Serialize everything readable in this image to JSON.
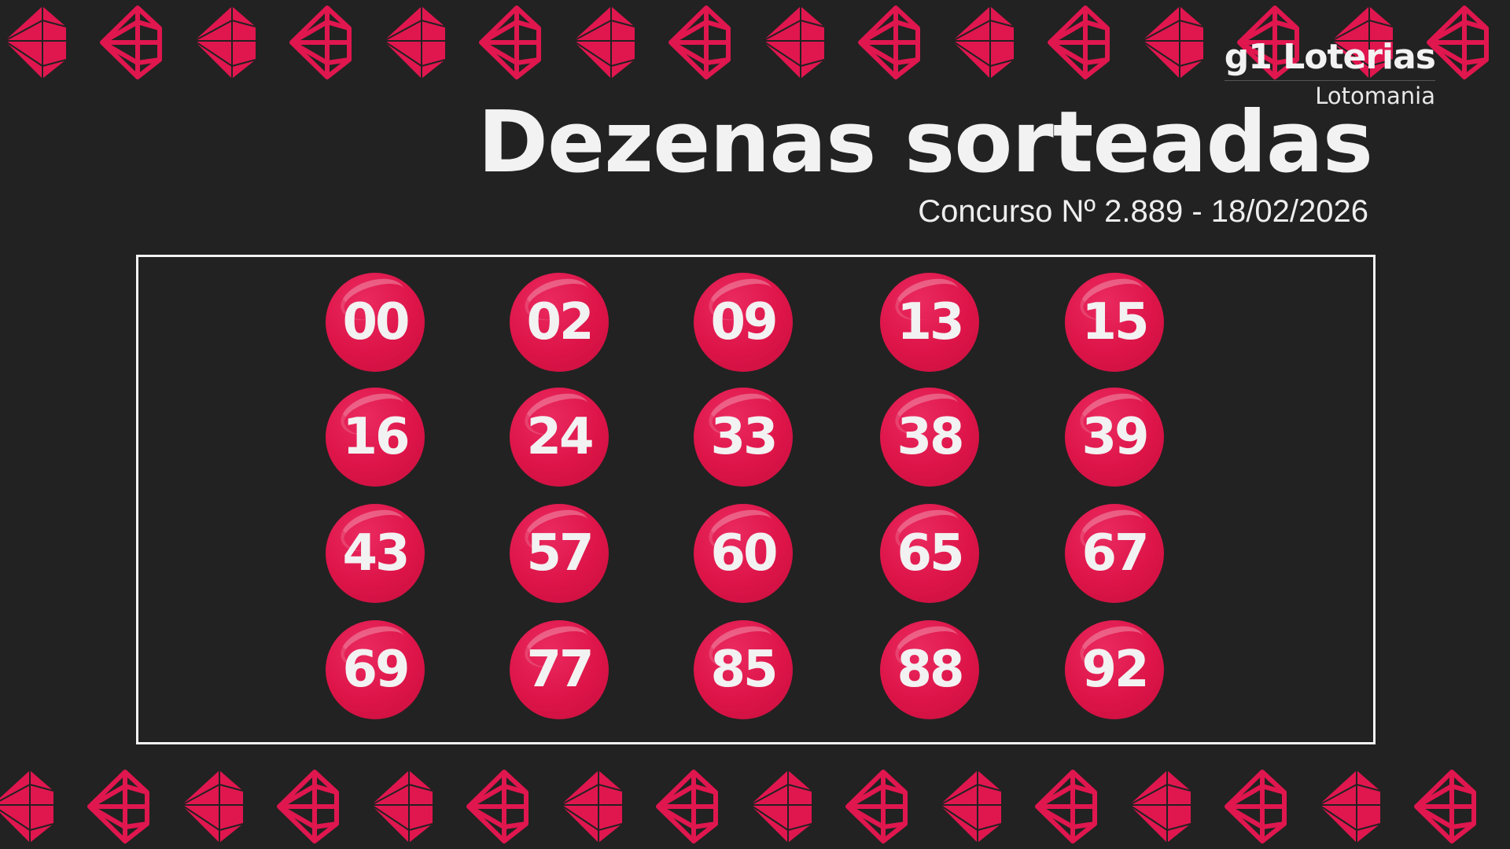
{
  "brand": {
    "logo": "g1 Loterias",
    "game": "Lotomania"
  },
  "header": {
    "title": "Dezenas sorteadas",
    "subtitle": "Concurso Nº 2.889 - 18/02/2026"
  },
  "numbers": [
    "00",
    "02",
    "09",
    "13",
    "15",
    "16",
    "24",
    "33",
    "38",
    "39",
    "43",
    "57",
    "60",
    "65",
    "67",
    "69",
    "77",
    "85",
    "88",
    "92"
  ],
  "colors": {
    "background": "#222222",
    "accent": "#e0164f",
    "text": "#f2f2f2"
  },
  "decoration": {
    "icon": "gem-icon"
  }
}
